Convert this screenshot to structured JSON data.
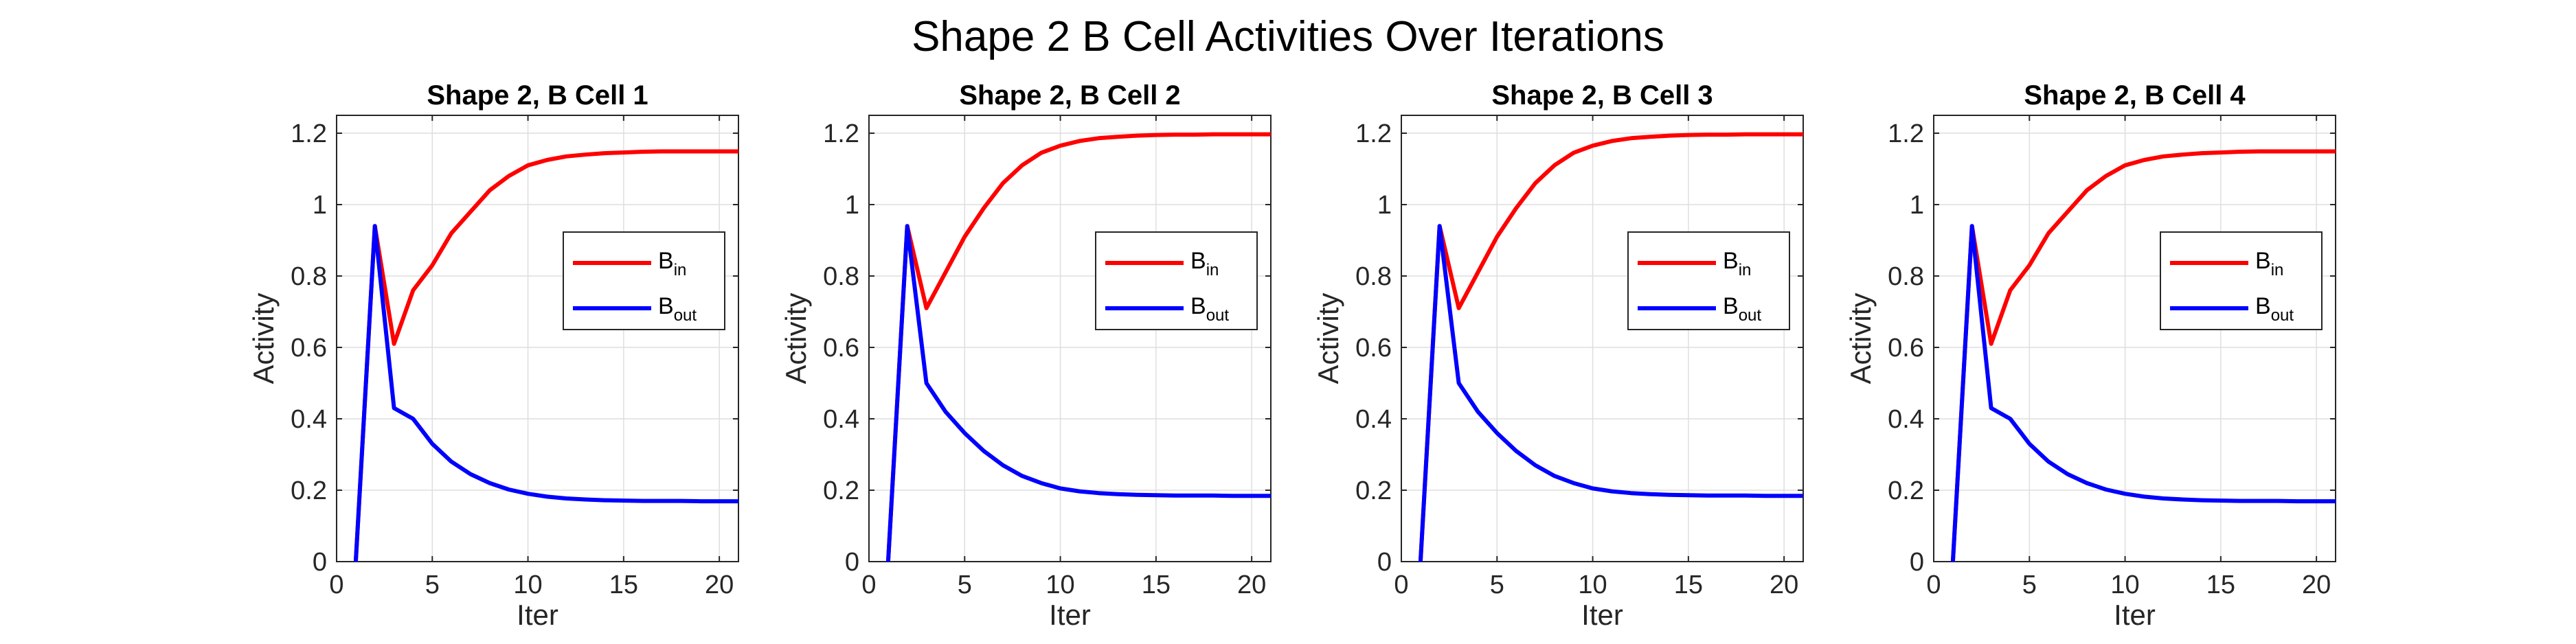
{
  "figure_title": "Shape 2 B Cell Activities Over Iterations",
  "colors": {
    "in": "#ff0000",
    "out": "#0000ff",
    "grid": "#dedede",
    "axes": "#262626"
  },
  "chart_data": [
    {
      "type": "line",
      "title": "Shape 2, B Cell 1",
      "xlabel": "Iter",
      "ylabel": "Activity",
      "xlim": [
        0,
        21
      ],
      "ylim": [
        0,
        1.25
      ],
      "xticks": [
        0,
        5,
        10,
        15,
        20
      ],
      "yticks": [
        0,
        0.2,
        0.4,
        0.6,
        0.8,
        1,
        1.2
      ],
      "grid": true,
      "legend_position": "middle-right",
      "x": [
        1,
        2,
        3,
        4,
        5,
        6,
        7,
        8,
        9,
        10,
        11,
        12,
        13,
        14,
        15,
        16,
        17,
        18,
        19,
        20,
        21
      ],
      "series": [
        {
          "name": "B",
          "subscript": "in",
          "color": "#ff0000",
          "values": [
            0,
            0.94,
            0.61,
            0.76,
            0.83,
            0.92,
            0.98,
            1.04,
            1.08,
            1.11,
            1.125,
            1.135,
            1.14,
            1.144,
            1.146,
            1.148,
            1.149,
            1.149,
            1.149,
            1.149,
            1.149
          ]
        },
        {
          "name": "B",
          "subscript": "out",
          "color": "#0000ff",
          "values": [
            0,
            0.94,
            0.43,
            0.4,
            0.33,
            0.28,
            0.245,
            0.22,
            0.202,
            0.19,
            0.182,
            0.177,
            0.174,
            0.172,
            0.171,
            0.17,
            0.17,
            0.17,
            0.169,
            0.169,
            0.169
          ]
        }
      ]
    },
    {
      "type": "line",
      "title": "Shape 2, B Cell 2",
      "xlabel": "Iter",
      "ylabel": "Activity",
      "xlim": [
        0,
        21
      ],
      "ylim": [
        0,
        1.25
      ],
      "xticks": [
        0,
        5,
        10,
        15,
        20
      ],
      "yticks": [
        0,
        0.2,
        0.4,
        0.6,
        0.8,
        1,
        1.2
      ],
      "grid": true,
      "legend_position": "middle-right",
      "x": [
        1,
        2,
        3,
        4,
        5,
        6,
        7,
        8,
        9,
        10,
        11,
        12,
        13,
        14,
        15,
        16,
        17,
        18,
        19,
        20,
        21
      ],
      "series": [
        {
          "name": "B",
          "subscript": "in",
          "color": "#ff0000",
          "values": [
            0,
            0.94,
            0.71,
            0.81,
            0.91,
            0.99,
            1.06,
            1.11,
            1.145,
            1.165,
            1.178,
            1.186,
            1.19,
            1.193,
            1.195,
            1.196,
            1.196,
            1.197,
            1.197,
            1.197,
            1.197
          ]
        },
        {
          "name": "B",
          "subscript": "out",
          "color": "#0000ff",
          "values": [
            0,
            0.94,
            0.5,
            0.42,
            0.36,
            0.31,
            0.27,
            0.24,
            0.22,
            0.205,
            0.197,
            0.192,
            0.189,
            0.187,
            0.186,
            0.185,
            0.185,
            0.185,
            0.184,
            0.184,
            0.184
          ]
        }
      ]
    },
    {
      "type": "line",
      "title": "Shape 2, B Cell 3",
      "xlabel": "Iter",
      "ylabel": "Activity",
      "xlim": [
        0,
        21
      ],
      "ylim": [
        0,
        1.25
      ],
      "xticks": [
        0,
        5,
        10,
        15,
        20
      ],
      "yticks": [
        0,
        0.2,
        0.4,
        0.6,
        0.8,
        1,
        1.2
      ],
      "grid": true,
      "legend_position": "middle-right",
      "x": [
        1,
        2,
        3,
        4,
        5,
        6,
        7,
        8,
        9,
        10,
        11,
        12,
        13,
        14,
        15,
        16,
        17,
        18,
        19,
        20,
        21
      ],
      "series": [
        {
          "name": "B",
          "subscript": "in",
          "color": "#ff0000",
          "values": [
            0,
            0.94,
            0.71,
            0.81,
            0.91,
            0.99,
            1.06,
            1.11,
            1.145,
            1.165,
            1.178,
            1.186,
            1.19,
            1.193,
            1.195,
            1.196,
            1.196,
            1.197,
            1.197,
            1.197,
            1.197
          ]
        },
        {
          "name": "B",
          "subscript": "out",
          "color": "#0000ff",
          "values": [
            0,
            0.94,
            0.5,
            0.42,
            0.36,
            0.31,
            0.27,
            0.24,
            0.22,
            0.205,
            0.197,
            0.192,
            0.189,
            0.187,
            0.186,
            0.185,
            0.185,
            0.185,
            0.184,
            0.184,
            0.184
          ]
        }
      ]
    },
    {
      "type": "line",
      "title": "Shape 2, B Cell 4",
      "xlabel": "Iter",
      "ylabel": "Activity",
      "xlim": [
        0,
        21
      ],
      "ylim": [
        0,
        1.25
      ],
      "xticks": [
        0,
        5,
        10,
        15,
        20
      ],
      "yticks": [
        0,
        0.2,
        0.4,
        0.6,
        0.8,
        1,
        1.2
      ],
      "grid": true,
      "legend_position": "middle-right",
      "x": [
        1,
        2,
        3,
        4,
        5,
        6,
        7,
        8,
        9,
        10,
        11,
        12,
        13,
        14,
        15,
        16,
        17,
        18,
        19,
        20,
        21
      ],
      "series": [
        {
          "name": "B",
          "subscript": "in",
          "color": "#ff0000",
          "values": [
            0,
            0.94,
            0.61,
            0.76,
            0.83,
            0.92,
            0.98,
            1.04,
            1.08,
            1.11,
            1.125,
            1.135,
            1.14,
            1.144,
            1.146,
            1.148,
            1.149,
            1.149,
            1.149,
            1.149,
            1.149
          ]
        },
        {
          "name": "B",
          "subscript": "out",
          "color": "#0000ff",
          "values": [
            0,
            0.94,
            0.43,
            0.4,
            0.33,
            0.28,
            0.245,
            0.22,
            0.202,
            0.19,
            0.182,
            0.177,
            0.174,
            0.172,
            0.171,
            0.17,
            0.17,
            0.17,
            0.169,
            0.169,
            0.169
          ]
        }
      ]
    }
  ]
}
